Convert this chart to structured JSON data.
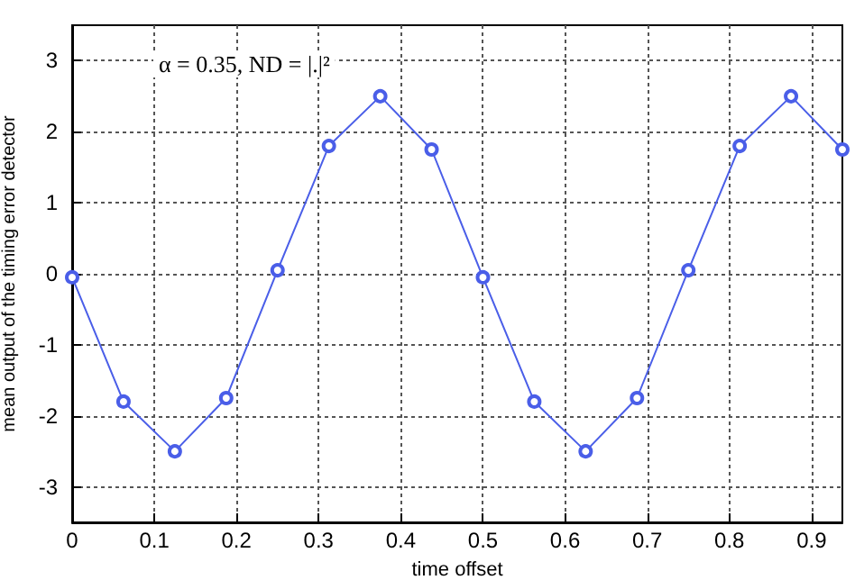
{
  "chart_data": {
    "type": "line",
    "xlabel": "time offset",
    "ylabel": "mean output of the timing error detector",
    "annotations": [
      "α = 0.35, ND = |.|²"
    ],
    "x": [
      0,
      0.0625,
      0.125,
      0.1875,
      0.25,
      0.3125,
      0.375,
      0.4375,
      0.5,
      0.5625,
      0.625,
      0.6875,
      0.75,
      0.8125,
      0.875,
      0.9375
    ],
    "series": [
      {
        "color": "#4a5ee8",
        "values": [
          -0.05,
          -1.8,
          -2.5,
          -1.75,
          0.05,
          1.8,
          2.5,
          1.75,
          -0.05,
          -1.8,
          -2.5,
          -1.75,
          0.05,
          1.8,
          2.5,
          1.75
        ]
      }
    ],
    "xlim": [
      0,
      0.9375
    ],
    "xticks": [
      0,
      0.1,
      0.2,
      0.3,
      0.4,
      0.5,
      0.6,
      0.7,
      0.8,
      0.9
    ],
    "ylim": [
      -3.5,
      3.5
    ],
    "yticks": [
      -3,
      -2,
      -1,
      0,
      1,
      2,
      3
    ],
    "grid": true,
    "marker": "circle",
    "line_style": "solid"
  }
}
